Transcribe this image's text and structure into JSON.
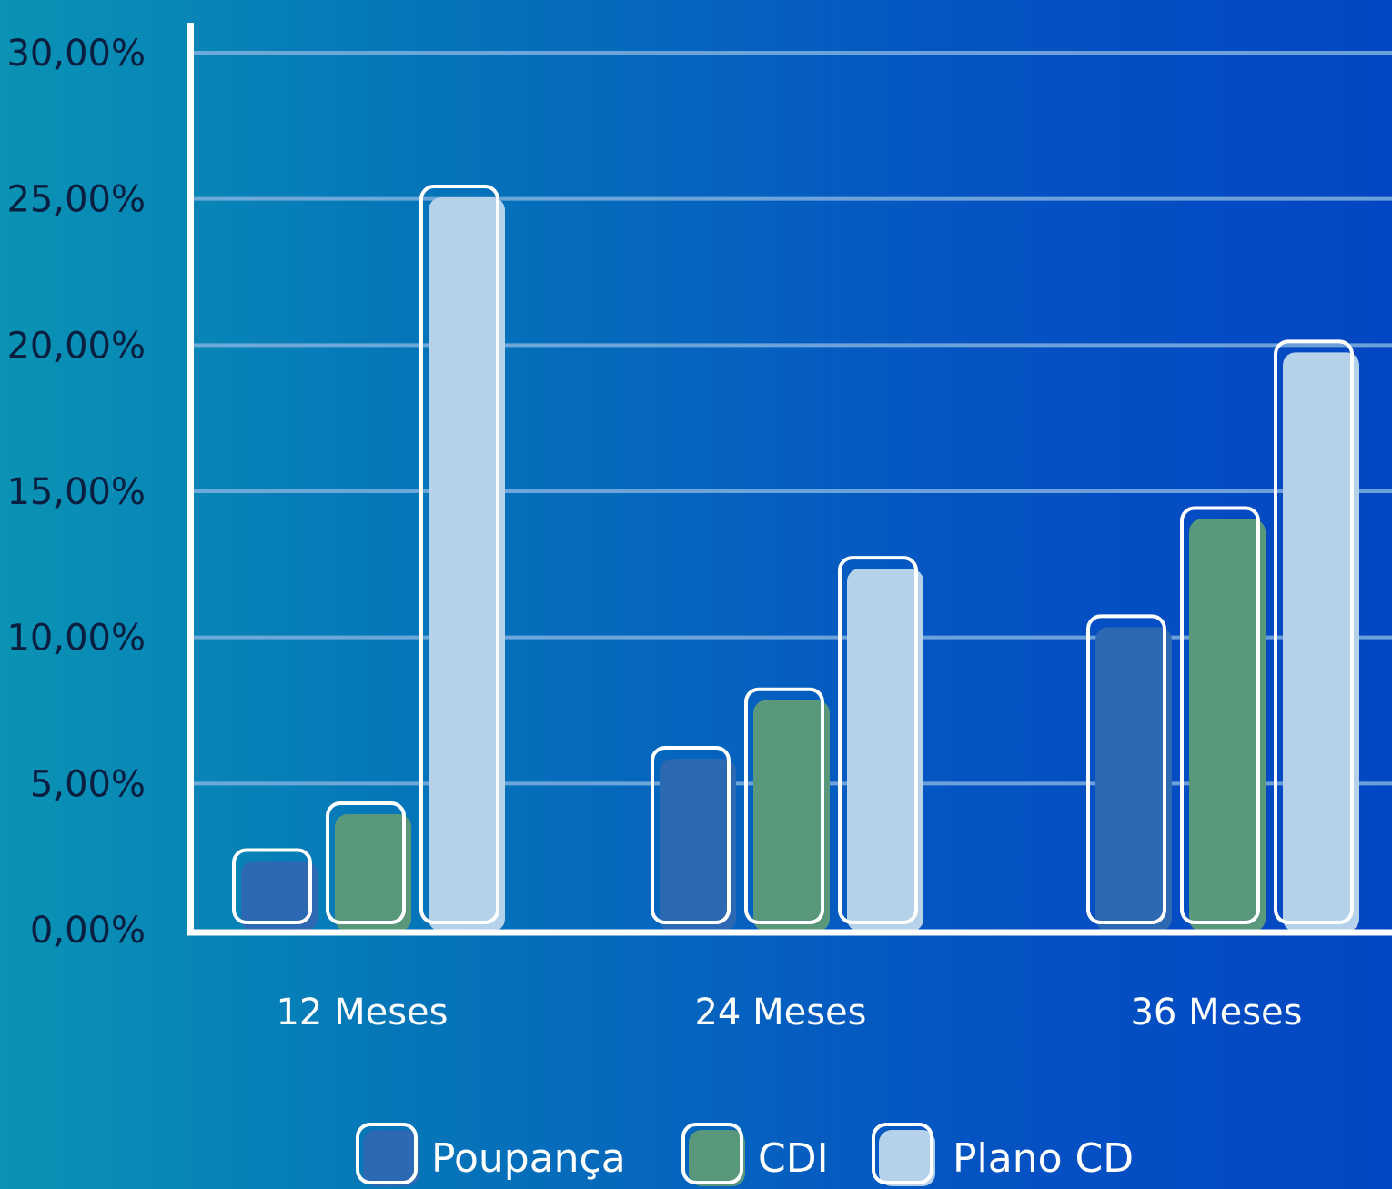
{
  "chart_data": {
    "type": "bar",
    "categories": [
      "12 Meses",
      "24 Meses",
      "36 Meses"
    ],
    "series": [
      {
        "name": "Poupança",
        "values": [
          2.6,
          6.1,
          10.6
        ]
      },
      {
        "name": "CDI",
        "values": [
          4.2,
          8.1,
          14.3
        ]
      },
      {
        "name": "Plano CD",
        "values": [
          25.3,
          12.6,
          20.0
        ]
      }
    ],
    "ylim": [
      0,
      30
    ],
    "yticks": [
      0,
      5,
      10,
      15,
      20,
      25,
      30
    ],
    "ytick_labels": [
      "0,00%",
      "5,00%",
      "10,00%",
      "15,00%",
      "20,00%",
      "25,00%",
      "30,00%"
    ],
    "grid": true,
    "legend_position": "bottom-center",
    "colors": {
      "Poupança": "#2d68b3",
      "CDI": "#5a987b",
      "Plano CD": "#b6d1ea",
      "grid": "#7fb0e0",
      "axis": "#ffffff",
      "tick_text": "#0a1f40"
    }
  }
}
